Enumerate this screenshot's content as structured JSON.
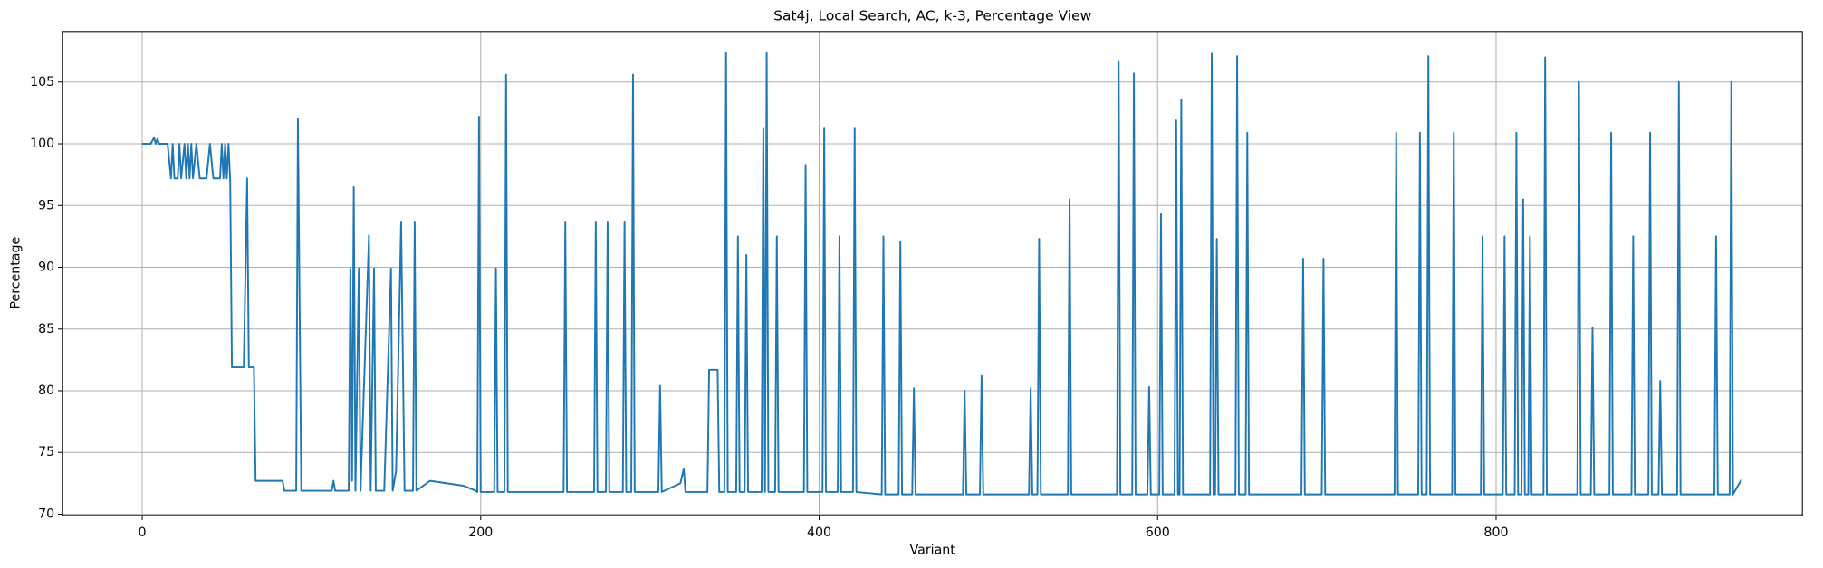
{
  "chart_data": {
    "type": "line",
    "title": "Sat4j, Local Search, AC, k-3, Percentage View",
    "x_label": "Variant",
    "y_label": "Percentage",
    "color": "#1f77b4",
    "grid": true,
    "xlim": [
      -47,
      981
    ],
    "ylim": [
      69.9,
      109.1
    ],
    "xticks": [
      0,
      200,
      400,
      600,
      800
    ],
    "yticks": [
      70,
      75,
      80,
      85,
      90,
      95,
      100,
      105
    ],
    "x": [
      0,
      5,
      7,
      8,
      9,
      10,
      15,
      17,
      18,
      19,
      21,
      22,
      23,
      25,
      26,
      27,
      28,
      29,
      30,
      32,
      34,
      38,
      40,
      42,
      46,
      47,
      48,
      49,
      50,
      51,
      52,
      53,
      60,
      62,
      63,
      66,
      67,
      83,
      84,
      91,
      92,
      94,
      112,
      113,
      114,
      122,
      123,
      124,
      125,
      126,
      128,
      129,
      134,
      135,
      137,
      138,
      143,
      147,
      148,
      150,
      153,
      155,
      160,
      161,
      162,
      170,
      180,
      190,
      197,
      198,
      199,
      200,
      208,
      209,
      210,
      214,
      215,
      216,
      249,
      250,
      251,
      267,
      268,
      269,
      274,
      275,
      276,
      284,
      285,
      286,
      289,
      290,
      291,
      305,
      306,
      307,
      318,
      320,
      321,
      334,
      335,
      340,
      341,
      344,
      345,
      346,
      351,
      352,
      353,
      356,
      357,
      358,
      366,
      367,
      368,
      369,
      370,
      374,
      375,
      376,
      391,
      392,
      393,
      402,
      403,
      404,
      411,
      412,
      413,
      420,
      421,
      422,
      437,
      438,
      439,
      447,
      448,
      449,
      455,
      456,
      457,
      485,
      486,
      487,
      495,
      496,
      497,
      524,
      525,
      526,
      529,
      530,
      531,
      547,
      548,
      549,
      576,
      577,
      578,
      585,
      586,
      587,
      594,
      595,
      596,
      601,
      602,
      603,
      610,
      611,
      612,
      613,
      614,
      615,
      631,
      632,
      633,
      634,
      635,
      636,
      646,
      647,
      648,
      652,
      653,
      654,
      685,
      686,
      687,
      697,
      698,
      699,
      740,
      741,
      742,
      754,
      755,
      756,
      759,
      760,
      761,
      774,
      775,
      776,
      791,
      792,
      793,
      804,
      805,
      806,
      811,
      812,
      813,
      815,
      816,
      817,
      819,
      820,
      821,
      828,
      829,
      830,
      848,
      849,
      850,
      856,
      857,
      858,
      867,
      868,
      869,
      880,
      881,
      882,
      890,
      891,
      892,
      896,
      897,
      898,
      907,
      908,
      909,
      929,
      930,
      931,
      938,
      939,
      940,
      945
    ],
    "values": [
      100,
      100,
      100.5,
      100,
      100.4,
      100,
      100,
      97.2,
      100,
      97.2,
      97.2,
      100,
      97.2,
      100,
      97.2,
      100,
      97.2,
      100,
      97.2,
      100,
      97.2,
      97.2,
      100,
      97.2,
      97.2,
      100,
      97.2,
      100,
      97.2,
      100,
      97,
      81.9,
      81.9,
      97.2,
      81.9,
      81.9,
      72.7,
      72.7,
      71.9,
      71.9,
      102,
      71.9,
      71.9,
      72.7,
      71.9,
      71.9,
      89.9,
      72.7,
      96.5,
      71.9,
      89.9,
      71.9,
      92.6,
      71.9,
      89.9,
      71.9,
      71.9,
      89.9,
      71.9,
      73.5,
      93.7,
      71.9,
      71.9,
      93.7,
      71.9,
      72.7,
      72.5,
      72.3,
      71.9,
      71.8,
      102.2,
      71.8,
      71.8,
      89.9,
      71.8,
      71.8,
      105.6,
      71.8,
      71.8,
      93.7,
      71.8,
      71.8,
      93.7,
      71.8,
      71.8,
      93.7,
      71.8,
      71.8,
      93.7,
      71.8,
      71.8,
      105.6,
      71.8,
      71.8,
      80.4,
      71.8,
      72.5,
      73.7,
      71.8,
      71.8,
      81.7,
      81.7,
      71.8,
      71.8,
      107.4,
      71.8,
      71.8,
      92.5,
      71.8,
      71.8,
      91,
      71.8,
      71.8,
      101.3,
      71.8,
      107.4,
      71.8,
      71.8,
      92.5,
      71.8,
      71.8,
      98.3,
      71.8,
      71.8,
      101.3,
      71.8,
      71.8,
      92.5,
      71.8,
      71.8,
      101.3,
      71.8,
      71.6,
      92.5,
      71.6,
      71.6,
      92.1,
      71.6,
      71.6,
      80.2,
      71.6,
      71.6,
      80,
      71.6,
      71.6,
      81.2,
      71.6,
      71.6,
      80.2,
      71.6,
      71.6,
      92.3,
      71.6,
      71.6,
      95.5,
      71.6,
      71.6,
      106.7,
      71.6,
      71.6,
      105.7,
      71.6,
      71.6,
      80.3,
      71.6,
      71.6,
      94.3,
      71.6,
      71.6,
      101.9,
      71.6,
      71.6,
      103.6,
      71.6,
      71.6,
      107.3,
      71.6,
      71.6,
      92.3,
      71.6,
      71.6,
      107.1,
      71.6,
      71.6,
      100.9,
      71.6,
      71.6,
      90.7,
      71.6,
      71.6,
      90.7,
      71.6,
      71.6,
      100.9,
      71.6,
      71.6,
      100.9,
      71.6,
      71.6,
      107.1,
      71.6,
      71.6,
      100.9,
      71.6,
      71.6,
      92.5,
      71.6,
      71.6,
      92.5,
      71.6,
      71.6,
      100.9,
      71.6,
      71.6,
      95.5,
      71.6,
      71.6,
      92.5,
      71.6,
      71.6,
      107,
      71.6,
      71.6,
      105,
      71.6,
      71.6,
      85.1,
      71.6,
      71.6,
      100.9,
      71.6,
      71.6,
      92.5,
      71.6,
      71.6,
      100.9,
      71.6,
      71.6,
      80.8,
      71.6,
      71.6,
      105,
      71.6,
      71.6,
      92.5,
      71.6,
      71.6,
      105,
      71.6,
      72.8
    ]
  }
}
